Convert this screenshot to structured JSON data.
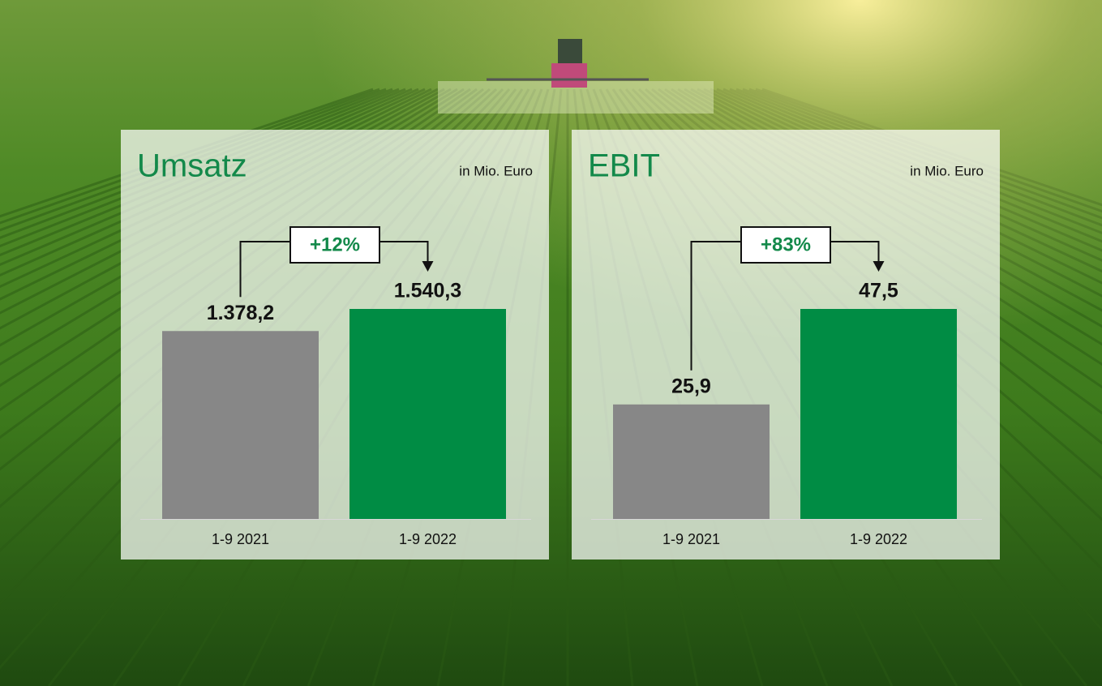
{
  "chart_data": [
    {
      "type": "bar",
      "title": "Umsatz",
      "subtitle": "in Mio. Euro",
      "annotation": "+12%",
      "categories": [
        "1-9 2021",
        "1-9 2022"
      ],
      "values": [
        1378.2,
        1540.3
      ],
      "value_labels": [
        "1.378,2",
        "1.540,3"
      ],
      "colors": [
        "#878787",
        "#008c44"
      ]
    },
    {
      "type": "bar",
      "title": "EBIT",
      "subtitle": "in Mio. Euro",
      "annotation": "+83%",
      "categories": [
        "1-9 2021",
        "1-9 2022"
      ],
      "values": [
        25.9,
        47.5
      ],
      "value_labels": [
        "25,9",
        "47,5"
      ],
      "colors": [
        "#878787",
        "#008c44"
      ]
    }
  ]
}
